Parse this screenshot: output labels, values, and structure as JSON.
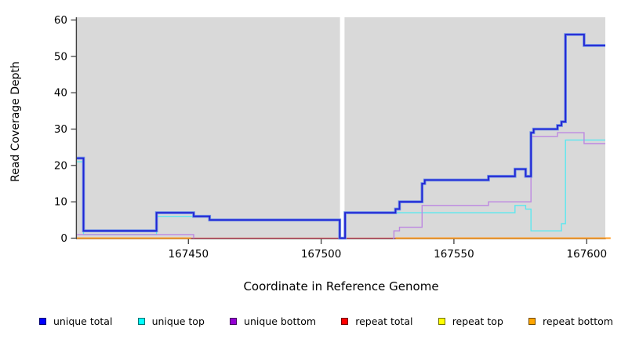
{
  "figure": {
    "xlabel": "Coordinate in Reference Genome",
    "ylabel": "Read Coverage Depth"
  },
  "legend": {
    "items": [
      {
        "label": "unique total",
        "color": "#0000FF"
      },
      {
        "label": "unique top",
        "color": "#00FFFF"
      },
      {
        "label": "unique bottom",
        "color": "#9400D3"
      },
      {
        "label": "repeat total",
        "color": "#FF0000"
      },
      {
        "label": "repeat top",
        "color": "#FFFF00"
      },
      {
        "label": "repeat bottom",
        "color": "#FFA500"
      }
    ]
  },
  "chart_data": {
    "type": "line",
    "subtype": "step",
    "title": "",
    "xlabel": "Coordinate in Reference Genome",
    "ylabel": "Read Coverage Depth",
    "xlim": [
      167408,
      167607
    ],
    "ylim": [
      0,
      60.65
    ],
    "x_ticks": [
      167450,
      167500,
      167550,
      167600
    ],
    "y_ticks": [
      0,
      10,
      20,
      30,
      40,
      50,
      60
    ],
    "grid": false,
    "legend_position": "bottom",
    "plot_bg": "#d9d9d9",
    "axis_color": "#404040",
    "coverage_gap_x": [
      167507.1,
      167508.8
    ],
    "draw_order": [
      "repeat top",
      "repeat total",
      "repeat bottom",
      "unique top",
      "unique bottom",
      "unique total"
    ],
    "series": [
      {
        "name": "unique total",
        "legend_color": "#0000FF",
        "line_color": "#2323d2",
        "glow_color": "#6b8fe8",
        "width": 1.8,
        "segments": [
          [
            [
              167408,
              22
            ],
            [
              167410.5,
              2
            ],
            [
              167438,
              7
            ],
            [
              167452,
              6
            ],
            [
              167458,
              5
            ],
            [
              167507,
              0
            ],
            [
              167509,
              7
            ],
            [
              167528,
              8
            ],
            [
              167529.5,
              10
            ],
            [
              167538,
              15
            ],
            [
              167539,
              16
            ],
            [
              167563,
              17
            ],
            [
              167573,
              19
            ],
            [
              167577,
              17
            ],
            [
              167579,
              29
            ],
            [
              167580,
              30
            ],
            [
              167589,
              31
            ],
            [
              167590.5,
              32
            ],
            [
              167592,
              56
            ],
            [
              167599,
              53
            ],
            [
              167607,
              53
            ]
          ]
        ]
      },
      {
        "name": "unique top",
        "legend_color": "#00FFFF",
        "line_color": "#5ce7ef",
        "width": 1.4,
        "segments": [
          [
            [
              167408,
              21
            ],
            [
              167410.5,
              1
            ],
            [
              167438,
              6
            ],
            [
              167452,
              6
            ]
          ],
          [
            [
              167528,
              7
            ],
            [
              167573,
              9
            ],
            [
              167577,
              8
            ],
            [
              167579,
              2
            ],
            [
              167590.5,
              4
            ],
            [
              167592,
              27
            ],
            [
              167607,
              27
            ]
          ]
        ]
      },
      {
        "name": "unique bottom",
        "legend_color": "#9400D3",
        "line_color": "#bd87e1",
        "width": 1.4,
        "segments": [
          [
            [
              167408,
              1
            ],
            [
              167452,
              0
            ]
          ],
          [
            [
              167527,
              0
            ],
            [
              167527.4,
              2
            ],
            [
              167529.5,
              3
            ],
            [
              167538,
              9
            ],
            [
              167563,
              10
            ],
            [
              167579,
              28
            ],
            [
              167589,
              29
            ],
            [
              167599,
              26
            ],
            [
              167607,
              26
            ]
          ]
        ]
      },
      {
        "name": "repeat total",
        "legend_color": "#FF0000",
        "line_color": "#d04a6c",
        "width": 1.2,
        "segments": [
          [
            [
              167408,
              0
            ],
            [
              167607,
              0
            ]
          ]
        ]
      },
      {
        "name": "repeat top",
        "legend_color": "#FFFF00",
        "line_color": "#e8df52",
        "width": 1.2,
        "segments": [
          [
            [
              167408,
              0
            ],
            [
              167607,
              0
            ]
          ]
        ]
      },
      {
        "name": "repeat bottom",
        "legend_color": "#FFA500",
        "line_color": "#ff9d26",
        "width": 2,
        "segments": [
          [
            [
              167408,
              0
            ],
            [
              167451,
              0
            ]
          ],
          [
            [
              167528,
              0
            ],
            [
              167609,
              0
            ]
          ]
        ]
      }
    ]
  }
}
